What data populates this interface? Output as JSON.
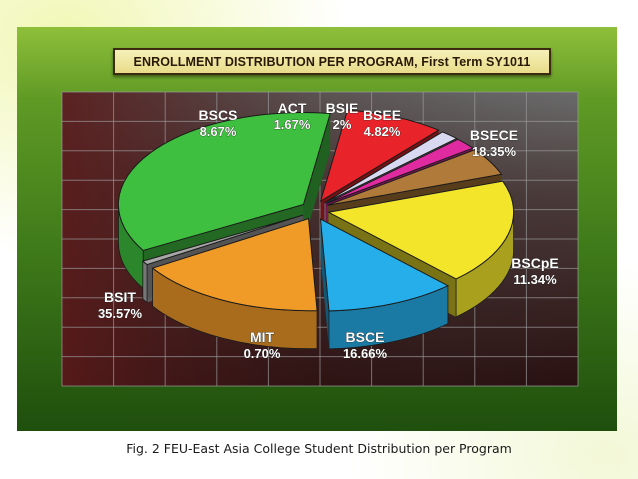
{
  "chart_data": {
    "type": "pie",
    "title": "ENROLLMENT DISTRIBUTION PER PROGRAM, First Term SY1011",
    "slices": [
      {
        "name": "BSIT",
        "label": "35.57%",
        "value": 35.57,
        "color": "#3fbf3f"
      },
      {
        "name": "BSCS",
        "label": "8.67%",
        "value": 8.67,
        "color": "#e8242a"
      },
      {
        "name": "ACT",
        "label": "1.67%",
        "value": 1.67,
        "color": "#d8d8f0"
      },
      {
        "name": "BSIE",
        "label": "2%",
        "value": 2,
        "color": "#e02aa0"
      },
      {
        "name": "BSEE",
        "label": "4.82%",
        "value": 4.82,
        "color": "#b07a3a"
      },
      {
        "name": "BSECE",
        "label": "18.35%",
        "value": 18.35,
        "color": "#f2e52a"
      },
      {
        "name": "BSCpE",
        "label": "11.34%",
        "value": 11.34,
        "color": "#25aeea"
      },
      {
        "name": "BSCE",
        "label": "16.66%",
        "value": 16.66,
        "color": "#f09a28"
      },
      {
        "name": "MIT",
        "label": "0.70%",
        "value": 0.7,
        "color": "#a8a8a8"
      }
    ]
  },
  "caption": "Fig. 2 FEU-East Asia College Student Distribution per Program"
}
